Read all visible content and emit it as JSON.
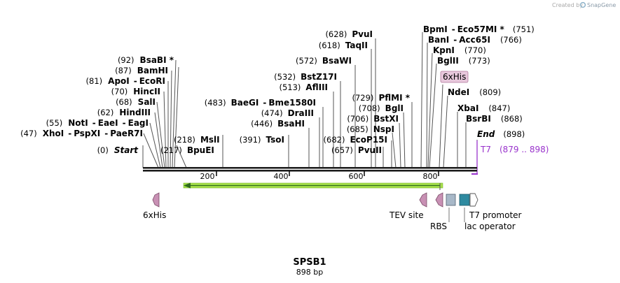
{
  "credit": {
    "prefix": "Created by",
    "brand": "SnapGene"
  },
  "construct": {
    "name": "SPSB1",
    "length": "898 bp"
  },
  "ruler": {
    "ticks": [
      "200",
      "400",
      "600",
      "800"
    ]
  },
  "sites": [
    {
      "pos": "(47)",
      "names": [
        "XhoI",
        "-",
        "PspXI",
        "-",
        "PaeR7I"
      ]
    },
    {
      "pos": "(55)",
      "names": [
        "NotI",
        "-",
        "EaeI",
        "-",
        "EagI"
      ]
    },
    {
      "pos": "(62)",
      "names": [
        "HindIII"
      ]
    },
    {
      "pos": "(68)",
      "names": [
        "SalI"
      ]
    },
    {
      "pos": "(70)",
      "names": [
        "HincII"
      ]
    },
    {
      "pos": "(81)",
      "names": [
        "ApoI",
        "-",
        "EcoRI"
      ]
    },
    {
      "pos": "(87)",
      "names": [
        "BamHI"
      ]
    },
    {
      "pos": "(92)",
      "names": [
        "BsaBI *"
      ]
    },
    {
      "pos": "(0)",
      "names": [
        "Start"
      ]
    },
    {
      "pos": "(217)",
      "names": [
        "BpuEI"
      ]
    },
    {
      "pos": "(218)",
      "names": [
        "MslI"
      ]
    },
    {
      "pos": "(391)",
      "names": [
        "TsoI"
      ]
    },
    {
      "pos": "(446)",
      "names": [
        "BsaHI"
      ]
    },
    {
      "pos": "(474)",
      "names": [
        "DraIII"
      ]
    },
    {
      "pos": "(483)",
      "names": [
        "BaeGI",
        "-",
        "Bme1580I"
      ]
    },
    {
      "pos": "(513)",
      "names": [
        "AflIII"
      ]
    },
    {
      "pos": "(532)",
      "names": [
        "BstZ17I"
      ]
    },
    {
      "pos": "(572)",
      "names": [
        "BsaWI"
      ]
    },
    {
      "pos": "(618)",
      "names": [
        "TaqII"
      ]
    },
    {
      "pos": "(628)",
      "names": [
        "PvuI"
      ]
    },
    {
      "pos": "(657)",
      "names": [
        "PvuII"
      ]
    },
    {
      "pos": "(682)",
      "names": [
        "EcoP15I"
      ]
    },
    {
      "pos": "(685)",
      "names": [
        "NspI"
      ]
    },
    {
      "pos": "(706)",
      "names": [
        "BstXI"
      ]
    },
    {
      "pos": "(708)",
      "names": [
        "BglI"
      ]
    },
    {
      "pos": "(729)",
      "names": [
        "PflMI *"
      ]
    },
    {
      "pos": "(751)",
      "names": [
        "BpmI",
        "-",
        "Eco57MI *"
      ]
    },
    {
      "pos": "(766)",
      "names": [
        "BanI",
        "-",
        "Acc65I"
      ]
    },
    {
      "pos": "(770)",
      "names": [
        "KpnI"
      ]
    },
    {
      "pos": "(773)",
      "names": [
        "BglII"
      ]
    },
    {
      "pos": "(809)",
      "names": [
        "NdeI"
      ]
    },
    {
      "pos": "(847)",
      "names": [
        "XbaI"
      ]
    },
    {
      "pos": "(868)",
      "names": [
        "BsrBI"
      ]
    },
    {
      "pos": "(898)",
      "names": [
        "End"
      ]
    }
  ],
  "features": {
    "his_tag_box": "6xHis",
    "his_tag": "6xHis",
    "tev": "TEV site",
    "rbs": "RBS",
    "t7_promoter": "T7 promoter",
    "lac_operator": "lac operator",
    "t7_label": "T7",
    "t7_range": "(879 .. 898)"
  },
  "colors": {
    "tag_fill": "#c890b4",
    "rbs_fill": "#a8b8c8",
    "lac_fill": "#2e8aa0",
    "orf_fill": "#a6e04a",
    "orf_arrow": "#2f6b1e",
    "t7": "#9933cc",
    "his_box": "#e8c8dc"
  }
}
